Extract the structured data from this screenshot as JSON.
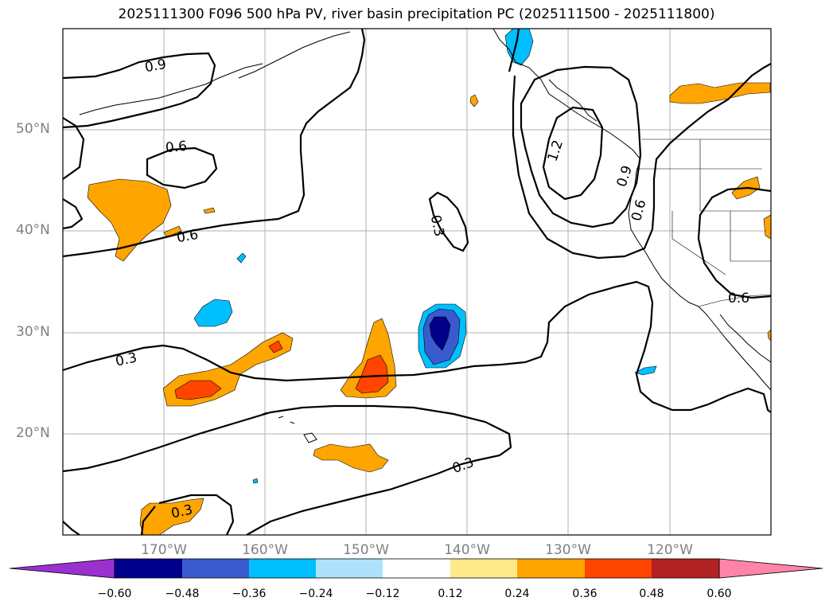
{
  "title": "2025111300 F096 500 hPa PV, river basin precipitation PC (2025111500 - 2025111800)",
  "lat_labels": [
    "50°N",
    "40°N",
    "30°N",
    "20°N"
  ],
  "lon_labels": [
    "170°W",
    "160°W",
    "150°W",
    "140°W",
    "130°W",
    "120°W"
  ],
  "contour_labels": [
    "0.9",
    "0.6",
    "0.6",
    "0.3",
    "1.2",
    "0.9",
    "0.6",
    "0.3",
    "0.6",
    "0.3",
    "0.3"
  ],
  "colorbar": {
    "colors": [
      "#9b30d0",
      "#00008b",
      "#3a5bcf",
      "#00bfff",
      "#aee2fa",
      "#ffffff",
      "#ffe98a",
      "#ffa500",
      "#ff4500",
      "#b22222",
      "#ff85a8"
    ],
    "ticks": [
      "−0.60",
      "−0.48",
      "−0.36",
      "−0.24",
      "−0.12",
      "0.12",
      "0.24",
      "0.36",
      "0.48",
      "0.60"
    ]
  },
  "colors": {
    "pos_024": "#ffa500",
    "pos_036": "#ff4500",
    "neg_024": "#00bfff",
    "neg_036": "#3a5bcf",
    "neg_048": "#00008b"
  }
}
